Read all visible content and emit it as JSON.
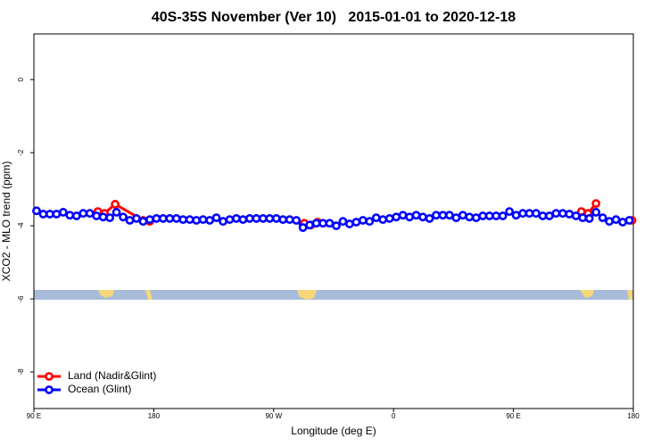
{
  "chart_data": {
    "type": "line",
    "title": "40S-35S November (Ver 10)   2015-01-01 to 2020-12-18",
    "xlabel": "Longitude (deg E)",
    "ylabel": "XCO2 - MLO trend (ppm)",
    "xlim": [
      90,
      540
    ],
    "ylim": [
      -9,
      1.25
    ],
    "xticks": [
      {
        "value": 90,
        "label": "90 E"
      },
      180,
      {
        "value": 270,
        "label": "90 W"
      },
      {
        "value": 360,
        "label": "0"
      },
      {
        "value": 450,
        "label": "90 E"
      },
      {
        "value": 540,
        "label": "180"
      }
    ],
    "yticks": [
      0,
      -2,
      -4,
      -6,
      -8
    ],
    "legend": "bottom-left",
    "series": [
      {
        "name": "Land (Nadir&Glint)",
        "color": "#ff0000",
        "x": [
          138,
          143,
          151,
          172,
          177,
          null,
          293,
          298,
          303,
          null,
          501,
          506,
          512,
          null,
          539
        ],
        "values": [
          -3.61,
          -3.66,
          -3.41,
          -3.85,
          -3.88,
          null,
          -3.93,
          -3.98,
          -3.9,
          null,
          -3.61,
          -3.66,
          -3.39,
          null,
          -3.85
        ]
      },
      {
        "name": "Ocean (Glint)",
        "color": "#0000ff",
        "x": [
          92,
          97,
          102,
          107,
          112,
          117,
          122,
          127,
          132,
          137,
          142,
          147,
          152,
          157,
          162,
          167,
          172,
          177,
          182,
          187,
          192,
          197,
          202,
          207,
          212,
          217,
          222,
          227,
          232,
          237,
          242,
          247,
          252,
          257,
          262,
          267,
          272,
          277,
          282,
          287,
          292,
          297,
          302,
          307,
          312,
          317,
          322,
          327,
          332,
          337,
          342,
          347,
          352,
          357,
          362,
          367,
          372,
          377,
          382,
          387,
          392,
          397,
          402,
          407,
          412,
          417,
          422,
          427,
          432,
          437,
          442,
          447,
          452,
          457,
          462,
          467,
          472,
          477,
          482,
          487,
          492,
          497,
          502,
          507,
          512,
          517,
          522,
          527,
          532,
          537
        ],
        "values": [
          -3.59,
          -3.68,
          -3.68,
          -3.68,
          -3.63,
          -3.71,
          -3.73,
          -3.66,
          -3.66,
          -3.73,
          -3.76,
          -3.78,
          -3.63,
          -3.76,
          -3.85,
          -3.8,
          -3.88,
          -3.83,
          -3.8,
          -3.8,
          -3.8,
          -3.8,
          -3.83,
          -3.83,
          -3.85,
          -3.83,
          -3.85,
          -3.78,
          -3.88,
          -3.83,
          -3.8,
          -3.83,
          -3.8,
          -3.8,
          -3.8,
          -3.8,
          -3.8,
          -3.83,
          -3.83,
          -3.85,
          -4.05,
          -3.98,
          -3.93,
          -3.93,
          -3.93,
          -4.0,
          -3.88,
          -3.95,
          -3.9,
          -3.85,
          -3.88,
          -3.78,
          -3.83,
          -3.8,
          -3.76,
          -3.71,
          -3.76,
          -3.71,
          -3.76,
          -3.8,
          -3.71,
          -3.71,
          -3.71,
          -3.78,
          -3.71,
          -3.76,
          -3.78,
          -3.73,
          -3.73,
          -3.73,
          -3.73,
          -3.61,
          -3.71,
          -3.66,
          -3.66,
          -3.66,
          -3.73,
          -3.73,
          -3.66,
          -3.66,
          -3.68,
          -3.73,
          -3.78,
          -3.8,
          -3.63,
          -3.78,
          -3.88,
          -3.83,
          -3.9,
          -3.85
        ]
      }
    ]
  }
}
